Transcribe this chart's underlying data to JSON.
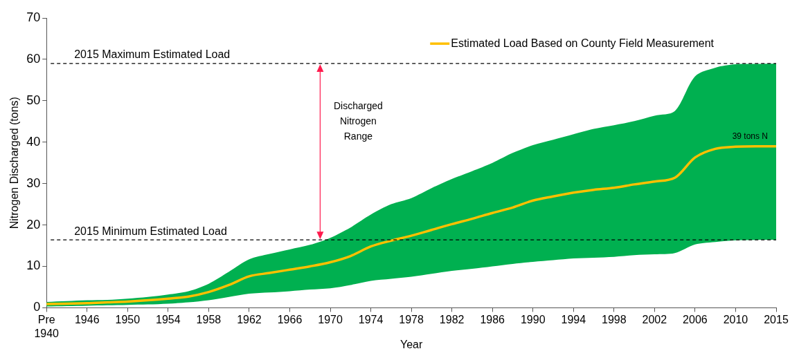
{
  "chart_data": {
    "type": "line",
    "xlabel": "Year",
    "ylabel": "Nitrogen Discharged (tons)",
    "categories": [
      "Pre 1940",
      null,
      "1946",
      null,
      "1950",
      null,
      "1954",
      null,
      "1958",
      null,
      "1962",
      null,
      "1966",
      null,
      "1970",
      null,
      "1974",
      null,
      "1978",
      null,
      "1982",
      null,
      "1986",
      null,
      "1990",
      null,
      "1994",
      null,
      "1998",
      null,
      "2002",
      null,
      "2006",
      null,
      "2010",
      null,
      "2015"
    ],
    "series": [
      {
        "name": "Estimated Load Based on County Field Measurement",
        "color": "#ffc000",
        "values": [
          0.9,
          1.0,
          1.1,
          1.3,
          1.5,
          1.8,
          2.2,
          2.7,
          3.8,
          5.5,
          7.6,
          8.4,
          9.2,
          10.0,
          11.0,
          12.5,
          14.8,
          16.2,
          17.4,
          18.8,
          20.2,
          21.5,
          22.9,
          24.2,
          25.9,
          26.9,
          27.8,
          28.5,
          29.0,
          29.8,
          30.5,
          31.4,
          36.3,
          38.4,
          38.9,
          39.0,
          39.0
        ],
        "upper": [
          1.4,
          1.6,
          1.8,
          1.9,
          2.2,
          2.6,
          3.2,
          4.0,
          5.8,
          8.7,
          11.7,
          13.0,
          14.1,
          15.2,
          16.9,
          19.4,
          22.5,
          25.0,
          26.5,
          28.9,
          31.1,
          33.0,
          35.0,
          37.4,
          39.3,
          40.6,
          41.9,
          43.2,
          44.1,
          45.1,
          46.4,
          47.5,
          55.9,
          58.0,
          58.8,
          58.9,
          59.0
        ],
        "lower": [
          0.3,
          0.4,
          0.5,
          0.6,
          0.7,
          0.8,
          1.0,
          1.3,
          1.8,
          2.6,
          3.4,
          3.7,
          4.0,
          4.4,
          4.7,
          5.5,
          6.5,
          7.0,
          7.5,
          8.2,
          8.9,
          9.4,
          10.0,
          10.6,
          11.1,
          11.5,
          11.9,
          12.1,
          12.3,
          12.7,
          12.9,
          13.2,
          15.3,
          15.9,
          16.3,
          16.4,
          16.4
        ]
      }
    ],
    "ylim": [
      0,
      70
    ],
    "yticks": [
      0,
      10,
      20,
      30,
      40,
      50,
      60,
      70
    ],
    "ref_lines": [
      {
        "axis": "y",
        "value": 59,
        "label": "2015 Maximum Estimated Load",
        "color": "#000000",
        "line_style": "dashed"
      },
      {
        "axis": "y",
        "value": 16.4,
        "label": "2015 Minimum Estimated Load",
        "color": "#000000",
        "line_style": "dashed"
      }
    ],
    "annotations": [
      "Discharged Nitrogen Range",
      {
        "text": "39 tons N",
        "x": "2015",
        "y": 39
      }
    ],
    "legend": "top right",
    "marker": "none",
    "line_style": "solid"
  }
}
